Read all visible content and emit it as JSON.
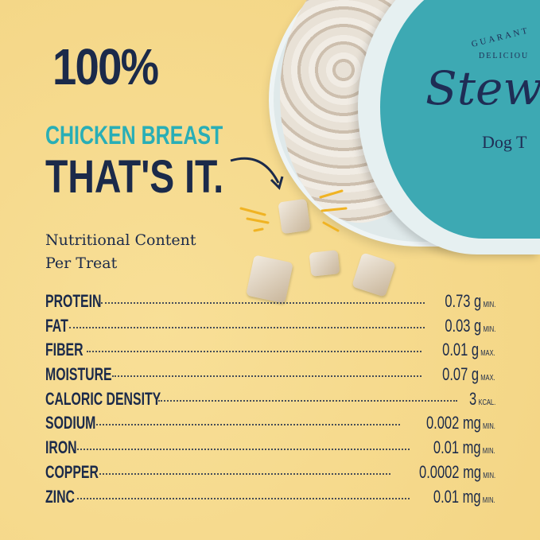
{
  "headline": {
    "line1": "100%",
    "line2": "CHICKEN BREAST",
    "line3": "THAT'S IT."
  },
  "nutrition_title": {
    "line1": "Nutritional Content",
    "line2": "Per Treat"
  },
  "product": {
    "brand": "Stew",
    "tagline1": "GUARANT",
    "tagline2": "DELICIOU",
    "subtitle": "Dog T"
  },
  "nutrients": [
    {
      "label": "PROTEIN",
      "value": "0.73 g",
      "qualifier": "MIN."
    },
    {
      "label": "FAT",
      "value": "0.03 g",
      "qualifier": "MIN."
    },
    {
      "label": "FIBER",
      "value": "0.01 g",
      "qualifier": "MAX."
    },
    {
      "label": "MOISTURE",
      "value": "0.07 g",
      "qualifier": "MAX."
    },
    {
      "label": "CALORIC DENSITY",
      "value": "3",
      "qualifier": "KCAL."
    },
    {
      "label": "SODIUM",
      "value": "0.002 mg",
      "qualifier": "MIN."
    },
    {
      "label": "IRON",
      "value": "0.01 mg",
      "qualifier": "MIN."
    },
    {
      "label": "COPPER",
      "value": "0.0002 mg",
      "qualifier": "MIN."
    },
    {
      "label": "ZINC",
      "value": "0.01 mg",
      "qualifier": "MIN."
    }
  ],
  "colors": {
    "background": "#f6d98c",
    "navy": "#1b2a4a",
    "teal": "#29aeb6",
    "lid": "#3da9b3"
  }
}
